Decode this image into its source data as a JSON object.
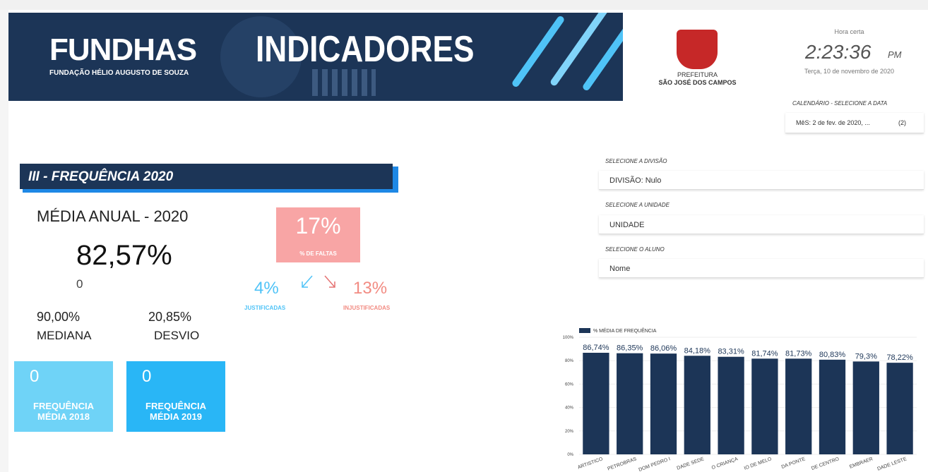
{
  "header": {
    "brand": "FUNDHAS",
    "brand_sub": "FUNDAÇÃO HÉLIO AUGUSTO DE SOUZA",
    "banner": "INDICADORES",
    "city_top": "PREFEITURA",
    "city": "SÃO JOSÉ DOS CAMPOS",
    "clock_label": "Hora certa",
    "time": "2:23:36",
    "ampm": "PM",
    "date": "Terça, 10 de novembro de 2020"
  },
  "calendar": {
    "label": "CALENDÁRIO - SELECIONE A DATA",
    "value": "MêS: 2 de fev. de 2020, ...",
    "count": "(2)"
  },
  "section": "III - FREQUÊNCIA 2020",
  "stats": {
    "annual_label": "MÉDIA ANUAL - 2020",
    "annual_value": "82,57%",
    "annual_sub": "0",
    "median_value": "90,00%",
    "median_label": "MEDIANA",
    "dev_value": "20,85%",
    "dev_label": "DESVIO"
  },
  "cards": [
    {
      "value": "0",
      "label": "FREQUÊNCIA MÉDIA 2018"
    },
    {
      "value": "0",
      "label": "FREQUÊNCIA MÉDIA 2019"
    }
  ],
  "absences": {
    "value": "17%",
    "label": "% DE FALTAS",
    "justified_value": "4%",
    "justified_label": "JUSTIFICADAS",
    "unjustified_value": "13%",
    "unjustified_label": "INJUSTIFICADAS"
  },
  "filters": [
    {
      "label": "SELECIONE A DIVISÃO",
      "value": "DIVISÃO: Nulo"
    },
    {
      "label": "SELECIONE A UNIDADE",
      "value": "UNIDADE"
    },
    {
      "label": "SELECIONE O ALUNO",
      "value": "Nome"
    }
  ],
  "chart_data": {
    "type": "bar",
    "categories": [
      "ARTISTICO",
      "PETROBRAS",
      "DOM PEDRO I",
      "DADE SEDE",
      "O CRIANÇA",
      "IO DE MELO",
      "DA PONTE",
      "DE CENTRO",
      "EMBRAER",
      "DADE LESTE"
    ],
    "series": [
      {
        "name": "% MÉDIA DE FREQUÊNCIA",
        "color": "#1c3557",
        "values": [
          86.74,
          86.35,
          86.06,
          84.18,
          83.31,
          81.74,
          81.73,
          80.83,
          79.3,
          78.22
        ],
        "value_labels": [
          "86,74%",
          "86,35%",
          "86,06%",
          "84,18%",
          "83,31%",
          "81,74%",
          "81,73%",
          "80,83%",
          "79,3%",
          "78,22%"
        ]
      }
    ],
    "ylim": [
      0,
      100
    ],
    "yticks": [
      {
        "value": 0,
        "label": "0%"
      },
      {
        "value": 20,
        "label": "20%"
      },
      {
        "value": 40,
        "label": "40%"
      },
      {
        "value": 60,
        "label": "60%"
      },
      {
        "value": 80,
        "label": "80%"
      },
      {
        "value": 100,
        "label": "100%"
      }
    ]
  }
}
